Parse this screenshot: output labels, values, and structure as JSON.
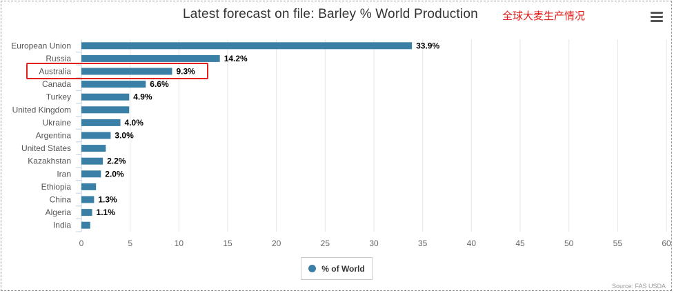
{
  "title": "Latest forecast on file: Barley % World Production",
  "annotation": "全球大麦生产情况",
  "source": "Source: FAS USDA",
  "menu_icon": "hamburger-menu-icon",
  "colors": {
    "bar": "#3a7fa6",
    "annotation": "#e0201b",
    "grid": "#e6e6e6"
  },
  "chart_data": {
    "type": "bar",
    "orientation": "horizontal",
    "title": "Latest forecast on file: Barley % World Production",
    "categories": [
      "European Union",
      "Russia",
      "Australia",
      "Canada",
      "Turkey",
      "United Kingdom",
      "Ukraine",
      "Argentina",
      "United States",
      "Kazakhstan",
      "Iran",
      "Ethiopia",
      "China",
      "Algeria",
      "India"
    ],
    "series": [
      {
        "name": "% of World",
        "values": [
          33.9,
          14.2,
          9.3,
          6.6,
          4.9,
          4.9,
          4.0,
          3.0,
          2.5,
          2.2,
          2.0,
          1.5,
          1.3,
          1.1,
          0.9
        ],
        "labels": [
          "33.9%",
          "14.2%",
          "9.3%",
          "6.6%",
          "4.9%",
          "",
          "4.0%",
          "3.0%",
          "",
          "2.2%",
          "2.0%",
          "",
          "1.3%",
          "1.1%",
          ""
        ]
      }
    ],
    "xlim": [
      0,
      60
    ],
    "xticks": [
      "0",
      "5",
      "10",
      "15",
      "20",
      "25",
      "30",
      "35",
      "40",
      "45",
      "50",
      "55",
      "60"
    ],
    "grid": true,
    "legend_position": "bottom-center",
    "highlighted_category": "Australia"
  }
}
